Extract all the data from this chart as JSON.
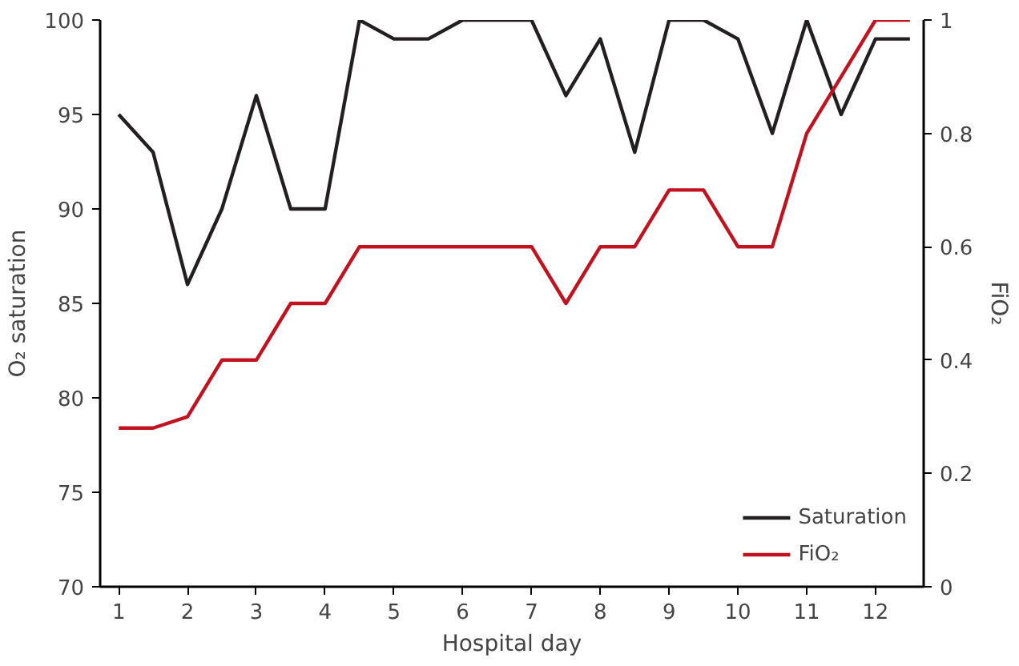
{
  "chart_data": {
    "type": "line",
    "xlabel": "Hospital day",
    "ylabel": "O₂ saturation",
    "y2label": "FiO₂",
    "x": [
      1,
      1.5,
      2,
      2.5,
      3,
      3.5,
      4,
      4.5,
      5,
      5.5,
      6,
      6.5,
      7,
      7.5,
      8,
      8.5,
      9,
      9.5,
      10,
      10.5,
      11,
      11.5,
      12,
      12.5
    ],
    "series": [
      {
        "name": "Saturation",
        "color": "#231f20",
        "values": [
          95,
          93,
          86,
          90,
          96,
          90,
          90,
          100,
          99,
          99,
          100,
          100,
          100,
          96,
          99,
          93,
          100,
          100,
          99,
          94,
          100,
          95,
          99,
          99
        ]
      },
      {
        "name": "FiO₂",
        "color": "#c1121f",
        "axis": "y2",
        "values": [
          0.28,
          0.28,
          0.3,
          0.4,
          0.4,
          0.5,
          0.5,
          0.6,
          0.6,
          0.6,
          0.6,
          0.6,
          0.6,
          0.5,
          0.6,
          0.6,
          0.7,
          0.7,
          0.6,
          0.6,
          0.8,
          0.9,
          1,
          1
        ]
      }
    ],
    "xlim": [
      0.73,
      12.7
    ],
    "xticks": [
      1,
      2,
      3,
      4,
      5,
      6,
      7,
      8,
      9,
      10,
      11,
      12
    ],
    "ylim": [
      70,
      100
    ],
    "yticks": [
      70,
      75,
      80,
      85,
      90,
      95,
      100
    ],
    "y2lim": [
      0,
      1
    ],
    "y2ticks": [
      0,
      0.2,
      0.4,
      0.6,
      0.8,
      1
    ],
    "grid": false,
    "legend": "bottom right",
    "marker": "none",
    "line_style": "solid"
  }
}
